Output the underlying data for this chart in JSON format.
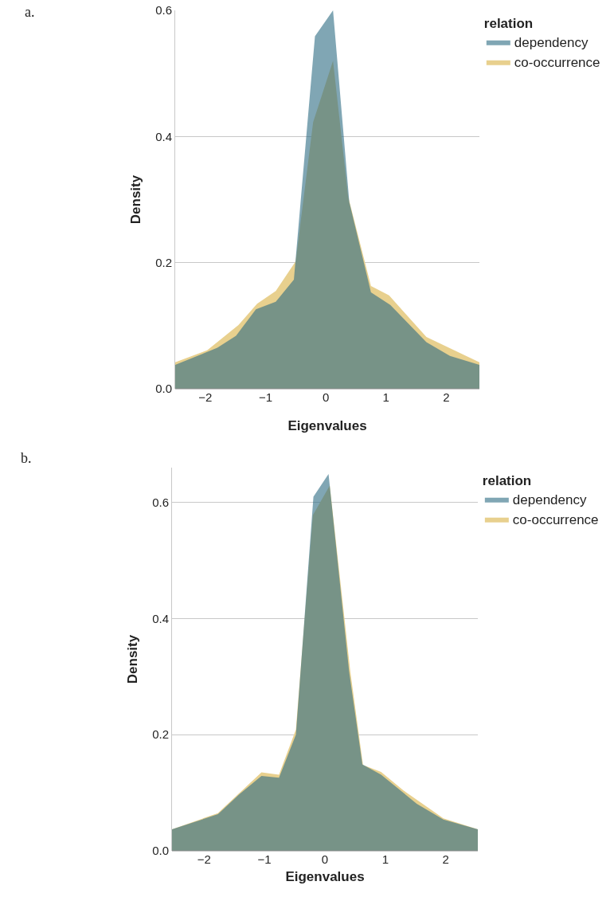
{
  "chart_data": [
    {
      "type": "area",
      "xlabel": "Eigenvalues",
      "ylabel": "Density",
      "legend_title": "relation",
      "annotations": [
        "a."
      ],
      "xlim": [
        -2.5,
        2.55
      ],
      "xticks": [
        -2,
        -1,
        0,
        1,
        2
      ],
      "ylim": [
        0,
        0.6
      ],
      "yticks": [
        {
          "value": 0,
          "label": "0.0"
        },
        0.2,
        0.4,
        0.6
      ],
      "grid": "y",
      "legend": "top right",
      "series": [
        {
          "name": "dependency",
          "color": "#80a6b4",
          "x": [
            -2.5,
            -1.8,
            -1.49,
            -1.16,
            -0.83,
            -0.53,
            -0.18,
            0.12,
            0.39,
            0.75,
            1.07,
            1.67,
            2.06,
            2.55
          ],
          "values": [
            0.038,
            0.065,
            0.084,
            0.126,
            0.138,
            0.173,
            0.559,
            0.6,
            0.296,
            0.153,
            0.133,
            0.074,
            0.052,
            0.038
          ]
        },
        {
          "name": "co-occurrence",
          "color": "#e8d08e",
          "x": [
            -2.5,
            -1.97,
            -1.45,
            -1.14,
            -0.83,
            -0.5,
            -0.21,
            0.12,
            0.37,
            0.75,
            1.05,
            1.67,
            2.55
          ],
          "values": [
            0.042,
            0.061,
            0.101,
            0.135,
            0.155,
            0.202,
            0.423,
            0.52,
            0.305,
            0.163,
            0.148,
            0.082,
            0.042
          ]
        }
      ]
    },
    {
      "type": "area",
      "xlabel": "Eigenvalues",
      "ylabel": "Density",
      "legend_title": "relation",
      "annotations": [
        "b."
      ],
      "xlim": [
        -2.53,
        2.53
      ],
      "xticks": [
        -2,
        -1,
        0,
        1,
        2
      ],
      "ylim": [
        0,
        0.66
      ],
      "yticks": [
        {
          "value": 0,
          "label": "0.0"
        },
        0.2,
        0.4,
        0.6
      ],
      "grid": "y",
      "legend": "top right",
      "series": [
        {
          "name": "dependency",
          "color": "#80a6b4",
          "x": [
            -2.53,
            -1.77,
            -1.42,
            -1.05,
            -0.76,
            -0.48,
            -0.19,
            0.06,
            0.4,
            0.62,
            0.93,
            1.52,
            1.96,
            2.53
          ],
          "values": [
            0.037,
            0.063,
            0.097,
            0.129,
            0.126,
            0.2,
            0.61,
            0.649,
            0.309,
            0.149,
            0.131,
            0.081,
            0.054,
            0.037
          ]
        },
        {
          "name": "co-occurrence",
          "color": "#e8d08e",
          "x": [
            -2.53,
            -1.77,
            -1.05,
            -0.76,
            -0.48,
            -0.2,
            0.08,
            0.42,
            0.63,
            0.93,
            1.3,
            1.96,
            2.53
          ],
          "values": [
            0.037,
            0.065,
            0.135,
            0.131,
            0.209,
            0.578,
            0.629,
            0.309,
            0.148,
            0.136,
            0.104,
            0.056,
            0.037
          ]
        }
      ]
    }
  ]
}
